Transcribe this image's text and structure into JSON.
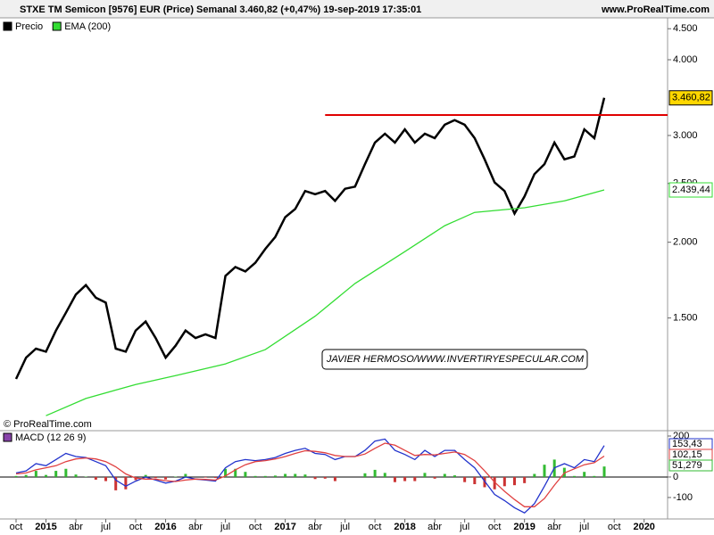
{
  "header": {
    "title": "STXE TM Semicon [9576] EUR (Price) Semanal 3.460,82 (+0,47%) 19-sep-2019 17:35:01",
    "site": "www.ProRealTime.com",
    "copyright": "© ProRealTime.com",
    "watermark": "JAVIER HERMOSO/WWW.INVERTIRYESPECULAR.COM"
  },
  "chart_data": [
    {
      "type": "line",
      "log_scale": true,
      "ylim": [
        981,
        4690
      ],
      "yticks": [
        {
          "value": 1500,
          "label": "1.500"
        },
        {
          "value": 2000,
          "label": "2.000"
        },
        {
          "value": 2500,
          "label": "2.500"
        },
        {
          "value": 3000,
          "label": "3.000"
        },
        {
          "value": 4000,
          "label": "4.000"
        },
        {
          "value": 4500,
          "label": "4.500"
        }
      ],
      "x": [
        "2014-10",
        "2014-11",
        "2014-12",
        "2015-01",
        "2015-02",
        "2015-03",
        "2015-04",
        "2015-05",
        "2015-06",
        "2015-07",
        "2015-08",
        "2015-09",
        "2015-10",
        "2015-11",
        "2015-12",
        "2016-01",
        "2016-02",
        "2016-03",
        "2016-04",
        "2016-05",
        "2016-06",
        "2016-07",
        "2016-08",
        "2016-09",
        "2016-10",
        "2016-11",
        "2016-12",
        "2017-01",
        "2017-02",
        "2017-03",
        "2017-04",
        "2017-05",
        "2017-06",
        "2017-07",
        "2017-08",
        "2017-09",
        "2017-10",
        "2017-11",
        "2017-12",
        "2018-01",
        "2018-02",
        "2018-03",
        "2018-04",
        "2018-05",
        "2018-06",
        "2018-07",
        "2018-08",
        "2018-09",
        "2018-10",
        "2018-11",
        "2018-12",
        "2019-01",
        "2019-02",
        "2019-03",
        "2019-04",
        "2019-05",
        "2019-06",
        "2019-07",
        "2019-08",
        "2019-09"
      ],
      "series": [
        {
          "name": "Precio",
          "color": "#000000",
          "values": [
            1190,
            1290,
            1335,
            1320,
            1430,
            1530,
            1640,
            1700,
            1620,
            1590,
            1335,
            1320,
            1430,
            1480,
            1390,
            1290,
            1350,
            1430,
            1390,
            1410,
            1390,
            1760,
            1820,
            1790,
            1850,
            1950,
            2040,
            2200,
            2270,
            2430,
            2400,
            2430,
            2340,
            2450,
            2470,
            2690,
            2920,
            3020,
            2920,
            3070,
            2920,
            3020,
            2970,
            3125,
            3180,
            3125,
            2970,
            2740,
            2510,
            2430,
            2230,
            2380,
            2590,
            2690,
            2920,
            2740,
            2770,
            3070,
            2970,
            3460.82
          ],
          "last_label": "3.460,82",
          "label_color": "#ffd700"
        },
        {
          "name": "EMA (200)",
          "color": "#33dd33",
          "x": [
            "2015-01",
            "2015-05",
            "2015-10",
            "2016-02",
            "2016-07",
            "2016-11",
            "2017-04",
            "2017-08",
            "2018-01",
            "2018-05",
            "2018-08",
            "2019-01",
            "2019-05",
            "2019-09"
          ],
          "values": [
            1035,
            1105,
            1165,
            1205,
            1260,
            1330,
            1510,
            1710,
            1930,
            2130,
            2240,
            2280,
            2340,
            2439.44
          ],
          "last_label": "2.439,44",
          "label_color": "#ffffff"
        }
      ],
      "hline": {
        "value": 3243,
        "color": "#e00000",
        "from": "2017-05"
      },
      "xticks": [
        {
          "value": "2014-10",
          "label": "oct"
        },
        {
          "value": "2015-01",
          "label": "2015"
        },
        {
          "value": "2015-04",
          "label": "abr"
        },
        {
          "value": "2015-07",
          "label": "jul"
        },
        {
          "value": "2015-10",
          "label": "oct"
        },
        {
          "value": "2016-01",
          "label": "2016"
        },
        {
          "value": "2016-04",
          "label": "abr"
        },
        {
          "value": "2016-07",
          "label": "jul"
        },
        {
          "value": "2016-10",
          "label": "oct"
        },
        {
          "value": "2017-01",
          "label": "2017"
        },
        {
          "value": "2017-04",
          "label": "abr"
        },
        {
          "value": "2017-07",
          "label": "jul"
        },
        {
          "value": "2017-10",
          "label": "oct"
        },
        {
          "value": "2018-01",
          "label": "2018"
        },
        {
          "value": "2018-04",
          "label": "abr"
        },
        {
          "value": "2018-07",
          "label": "jul"
        },
        {
          "value": "2018-10",
          "label": "oct"
        },
        {
          "value": "2019-01",
          "label": "2019"
        },
        {
          "value": "2019-04",
          "label": "abr"
        },
        {
          "value": "2019-07",
          "label": "jul"
        },
        {
          "value": "2019-10",
          "label": "oct"
        },
        {
          "value": "2020-01",
          "label": "2020"
        }
      ]
    },
    {
      "type": "macd",
      "title": "MACD (12 26 9)",
      "ylim": [
        -196,
        213
      ],
      "yticks": [
        -100,
        0,
        200
      ],
      "series": [
        {
          "name": "MACD",
          "color": "#2233cc",
          "values": [
            20,
            30,
            65,
            55,
            85,
            115,
            100,
            95,
            75,
            55,
            -15,
            -45,
            -20,
            0,
            -15,
            -30,
            -20,
            0,
            -10,
            -15,
            -20,
            45,
            75,
            85,
            80,
            85,
            95,
            115,
            130,
            140,
            115,
            110,
            85,
            100,
            100,
            130,
            175,
            185,
            130,
            110,
            85,
            130,
            100,
            130,
            130,
            85,
            45,
            -20,
            -85,
            -115,
            -150,
            -175,
            -130,
            -45,
            45,
            65,
            45,
            85,
            75,
            153.43
          ],
          "last_label": "153,43"
        },
        {
          "name": "Signal",
          "color": "#e04040",
          "values": [
            15,
            20,
            35,
            45,
            55,
            75,
            88,
            93,
            88,
            75,
            50,
            15,
            -5,
            -10,
            -10,
            -18,
            -22,
            -15,
            -10,
            -12,
            -15,
            5,
            35,
            60,
            75,
            80,
            88,
            100,
            115,
            128,
            125,
            118,
            105,
            100,
            100,
            112,
            140,
            165,
            155,
            130,
            105,
            110,
            108,
            115,
            122,
            110,
            80,
            30,
            -25,
            -70,
            -110,
            -145,
            -145,
            -105,
            -40,
            20,
            40,
            60,
            70,
            102.15
          ],
          "last_label": "102,15"
        },
        {
          "name": "Histogram",
          "color": "#33bb33",
          "neg_color": "#cc3333",
          "values": [
            5,
            10,
            30,
            10,
            30,
            40,
            12,
            2,
            -13,
            -20,
            -65,
            -60,
            -15,
            10,
            -5,
            -12,
            2,
            15,
            0,
            -3,
            -5,
            40,
            40,
            25,
            5,
            5,
            7,
            15,
            15,
            12,
            -10,
            -8,
            -20,
            0,
            0,
            18,
            35,
            20,
            -25,
            -20,
            -20,
            20,
            -8,
            15,
            8,
            -25,
            -35,
            -50,
            -60,
            -45,
            -40,
            -30,
            15,
            60,
            85,
            45,
            5,
            25,
            5,
            51.279
          ],
          "last_label": "51,279"
        }
      ]
    }
  ]
}
